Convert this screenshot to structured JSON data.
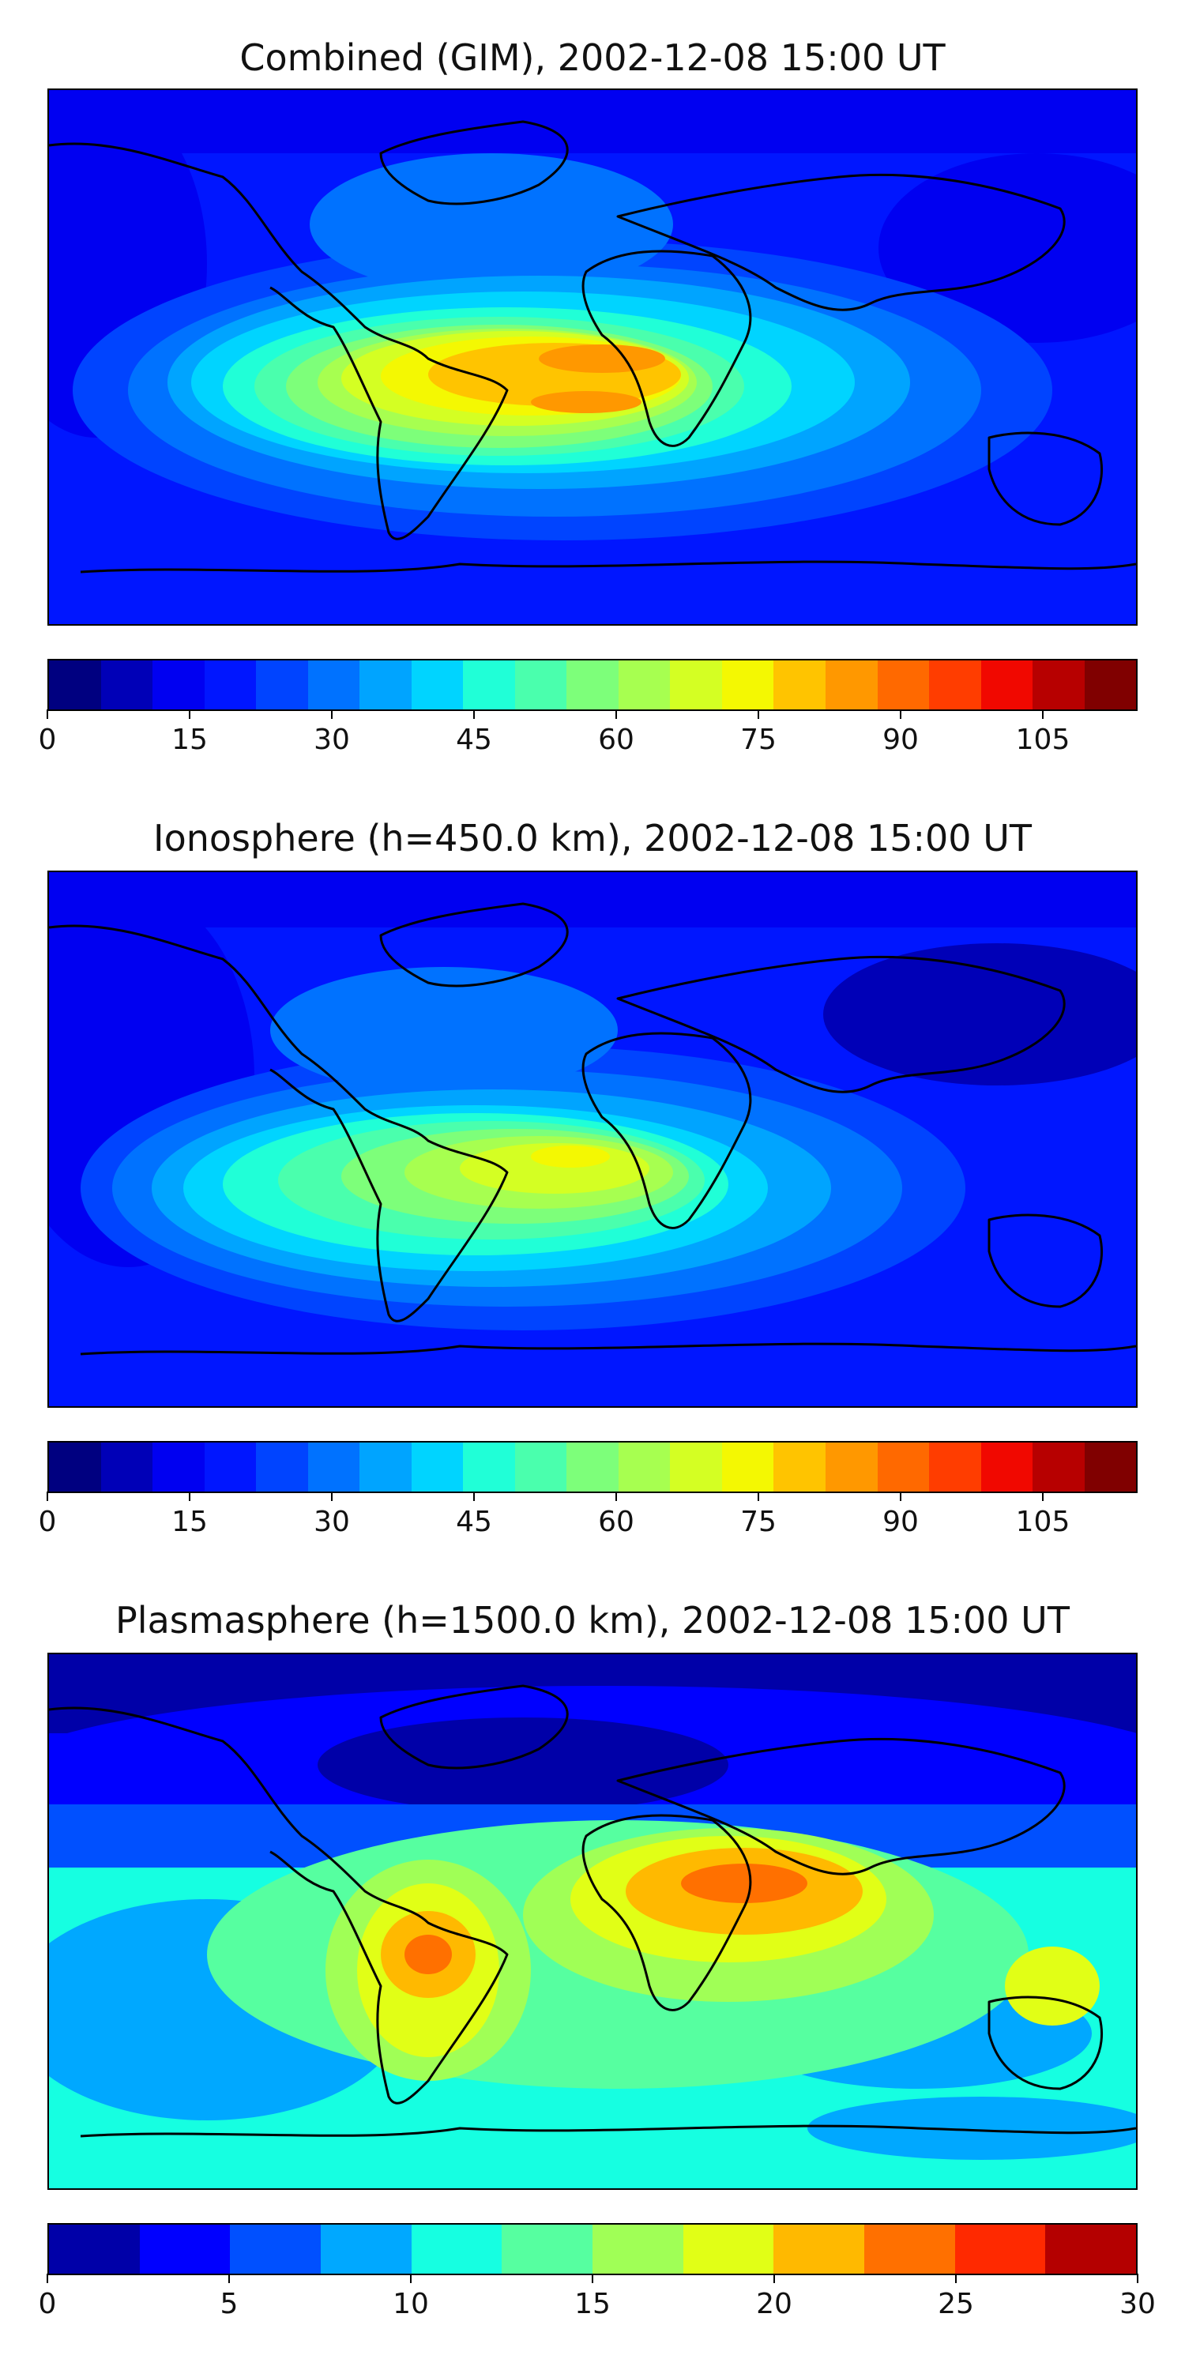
{
  "panels": [
    {
      "title": "Combined (GIM), 2002-12-08 15:00 UT",
      "colors": [
        "#000080",
        "#0000b7",
        "#0000f1",
        "#0016ff",
        "#0044ff",
        "#0072ff",
        "#00a4ff",
        "#00d4ff",
        "#20ffd7",
        "#4affad",
        "#7dff7a",
        "#a7ff50",
        "#d4ff23",
        "#f4f802",
        "#ffc400",
        "#ff9800",
        "#ff6900",
        "#ff3d00",
        "#f10800",
        "#b70000",
        "#800000"
      ],
      "ticks": [
        "0",
        "15",
        "30",
        "45",
        "60",
        "75",
        "90",
        "105"
      ],
      "tick_values": [
        0,
        15,
        30,
        45,
        60,
        75,
        90,
        105
      ],
      "range": [
        0,
        115
      ]
    },
    {
      "title": "Ionosphere  (h=450.0 km), 2002-12-08 15:00 UT",
      "colors": [
        "#000080",
        "#0000b7",
        "#0000f1",
        "#0016ff",
        "#0044ff",
        "#0072ff",
        "#00a4ff",
        "#00d4ff",
        "#20ffd7",
        "#4affad",
        "#7dff7a",
        "#a7ff50",
        "#d4ff23",
        "#f4f802",
        "#ffc400",
        "#ff9800",
        "#ff6900",
        "#ff3d00",
        "#f10800",
        "#b70000",
        "#800000"
      ],
      "ticks": [
        "0",
        "15",
        "30",
        "45",
        "60",
        "75",
        "90",
        "105"
      ],
      "tick_values": [
        0,
        15,
        30,
        45,
        60,
        75,
        90,
        105
      ],
      "range": [
        0,
        115
      ]
    },
    {
      "title": "Plasmasphere (h=1500.0 km), 2002-12-08 15:00 UT",
      "colors": [
        "#0000a8",
        "#0000ff",
        "#0050ff",
        "#00a8ff",
        "#16ffe1",
        "#56ffa0",
        "#a0ff56",
        "#e1ff16",
        "#ffb900",
        "#ff7000",
        "#ff2900",
        "#b40000"
      ],
      "ticks": [
        "0",
        "5",
        "10",
        "15",
        "20",
        "25",
        "30"
      ],
      "tick_values": [
        0,
        5,
        10,
        15,
        20,
        25,
        30
      ],
      "range": [
        0,
        30
      ]
    }
  ]
}
